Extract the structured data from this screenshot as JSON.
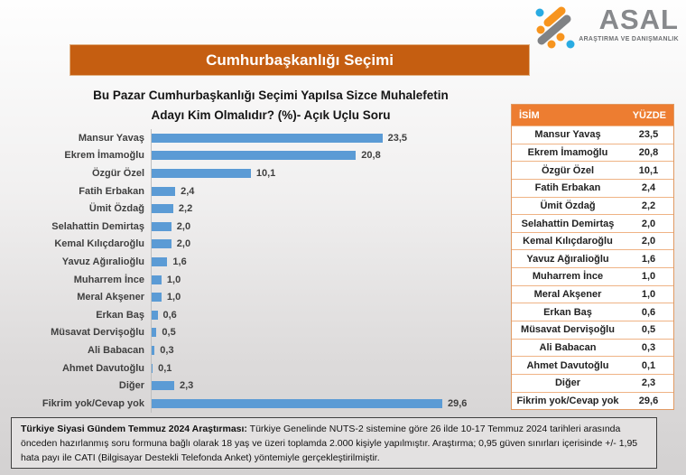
{
  "logo": {
    "name": "ASAL",
    "subtitle": "ARAŞTIRMA VE DANIŞMANLIK"
  },
  "banner": {
    "title": "Cumhurbaşkanlığı Seçimi"
  },
  "question": {
    "line1": "Bu Pazar Cumhurbaşkanlığı Seçimi Yapılsa Sizce Muhalefetin",
    "line2": "Adayı Kim Olmalıdır? (%)- Açık Uçlu Soru"
  },
  "chart_data": {
    "type": "bar",
    "orientation": "horizontal",
    "title": "Bu Pazar Cumhurbaşkanlığı Seçimi Yapılsa Sizce Muhalefetin Adayı Kim Olmalıdır? (%)- Açık Uçlu Soru",
    "categories": [
      "Mansur Yavaş",
      "Ekrem İmamoğlu",
      "Özgür Özel",
      "Fatih Erbakan",
      "Ümit Özdağ",
      "Selahattin Demirtaş",
      "Kemal Kılıçdaroğlu",
      "Yavuz Ağıralioğlu",
      "Muharrem İnce",
      "Meral Akşener",
      "Erkan Baş",
      "Müsavat Dervişoğlu",
      "Ali Babacan",
      "Ahmet Davutoğlu",
      "Diğer",
      "Fikrim yok/Cevap yok"
    ],
    "values": [
      23.5,
      20.8,
      10.1,
      2.4,
      2.2,
      2.0,
      2.0,
      1.6,
      1.0,
      1.0,
      0.6,
      0.5,
      0.3,
      0.1,
      2.3,
      29.6
    ],
    "value_labels": [
      "23,5",
      "20,8",
      "10,1",
      "2,4",
      "2,2",
      "2,0",
      "2,0",
      "1,6",
      "1,0",
      "1,0",
      "0,6",
      "0,5",
      "0,3",
      "0,1",
      "2,3",
      "29,6"
    ],
    "xlim": [
      0,
      30
    ],
    "bar_color": "#5B9BD5",
    "grid": false,
    "legend": false
  },
  "table": {
    "headers": [
      "İSİM",
      "YÜZDE"
    ],
    "rows": [
      [
        "Mansur Yavaş",
        "23,5"
      ],
      [
        "Ekrem İmamoğlu",
        "20,8"
      ],
      [
        "Özgür Özel",
        "10,1"
      ],
      [
        "Fatih Erbakan",
        "2,4"
      ],
      [
        "Ümit Özdağ",
        "2,2"
      ],
      [
        "Selahattin Demirtaş",
        "2,0"
      ],
      [
        "Kemal Kılıçdaroğlu",
        "2,0"
      ],
      [
        "Yavuz Ağıralioğlu",
        "1,6"
      ],
      [
        "Muharrem İnce",
        "1,0"
      ],
      [
        "Meral Akşener",
        "1,0"
      ],
      [
        "Erkan Baş",
        "0,6"
      ],
      [
        "Müsavat Dervişoğlu",
        "0,5"
      ],
      [
        "Ali Babacan",
        "0,3"
      ],
      [
        "Ahmet Davutoğlu",
        "0,1"
      ],
      [
        "Diğer",
        "2,3"
      ],
      [
        "Fikrim yok/Cevap yok",
        "29,6"
      ]
    ]
  },
  "footnote": {
    "bold": "Türkiye Siyasi Gündem Temmuz 2024 Araştırması:",
    "text": " Türkiye Genelinde  NUTS-2 sistemine göre 26 ilde 10-17 Temmuz 2024 tarihleri arasında önceden hazırlanmış soru formuna bağlı olarak 18 yaş ve üzeri toplamda 2.000 kişiyle yapılmıştır. Araştırma; 0,95 güven sınırları içerisinde +/- 1,95 hata payı ile CATI (Bilgisayar Destekli Telefonda Anket) yöntemiyle gerçekleştirilmiştir."
  },
  "colors": {
    "banner_orange": "#C55E11",
    "table_header_orange": "#ED7D31",
    "bar_blue": "#5B9BD5",
    "logo_gray": "#87898C",
    "logo_orange": "#F7941E",
    "logo_blue": "#29ABE2"
  }
}
